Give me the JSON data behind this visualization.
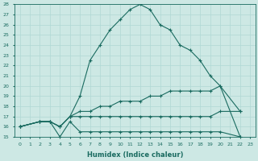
{
  "xlabel": "Humidex (Indice chaleur)",
  "background_color": "#cde8e4",
  "grid_color": "#b0d8d4",
  "line_color": "#1a6b60",
  "xlim": [
    -0.5,
    23.5
  ],
  "ylim": [
    15,
    28
  ],
  "xticks": [
    0,
    1,
    2,
    3,
    4,
    5,
    6,
    7,
    8,
    9,
    10,
    11,
    12,
    13,
    14,
    15,
    16,
    17,
    18,
    19,
    20,
    21,
    22,
    23
  ],
  "yticks": [
    15,
    16,
    17,
    18,
    19,
    20,
    21,
    22,
    23,
    24,
    25,
    26,
    27,
    28
  ],
  "series": [
    {
      "x": [
        0,
        2,
        3,
        4,
        5,
        6,
        7,
        8,
        9,
        10,
        11,
        12,
        13,
        14,
        15,
        16,
        17,
        18,
        19,
        20,
        22
      ],
      "y": [
        16.0,
        16.5,
        16.5,
        16.0,
        17.0,
        19.0,
        22.5,
        24.0,
        25.5,
        26.5,
        27.5,
        28.0,
        27.5,
        26.0,
        25.5,
        24.0,
        23.5,
        22.5,
        21.0,
        20.0,
        15.0
      ]
    },
    {
      "x": [
        0,
        2,
        3,
        4,
        5,
        6,
        7,
        8,
        9,
        10,
        11,
        12,
        13,
        14,
        15,
        16,
        17,
        18,
        19,
        20,
        22
      ],
      "y": [
        16.0,
        16.5,
        16.5,
        16.0,
        17.0,
        17.5,
        17.5,
        18.0,
        18.0,
        18.5,
        18.5,
        18.5,
        19.0,
        19.0,
        19.5,
        19.5,
        19.5,
        19.5,
        19.5,
        20.0,
        17.5
      ]
    },
    {
      "x": [
        0,
        2,
        3,
        4,
        5,
        6,
        7,
        8,
        9,
        10,
        11,
        12,
        13,
        14,
        15,
        16,
        17,
        18,
        19,
        20,
        22
      ],
      "y": [
        16.0,
        16.5,
        16.5,
        16.0,
        17.0,
        17.0,
        17.0,
        17.0,
        17.0,
        17.0,
        17.0,
        17.0,
        17.0,
        17.0,
        17.0,
        17.0,
        17.0,
        17.0,
        17.0,
        17.5,
        17.5
      ]
    },
    {
      "x": [
        0,
        2,
        3,
        4,
        5,
        6,
        7,
        8,
        9,
        10,
        11,
        12,
        13,
        14,
        15,
        16,
        17,
        18,
        19,
        20,
        22
      ],
      "y": [
        16.0,
        16.5,
        16.5,
        15.0,
        16.5,
        15.5,
        15.5,
        15.5,
        15.5,
        15.5,
        15.5,
        15.5,
        15.5,
        15.5,
        15.5,
        15.5,
        15.5,
        15.5,
        15.5,
        15.5,
        15.0
      ]
    }
  ]
}
